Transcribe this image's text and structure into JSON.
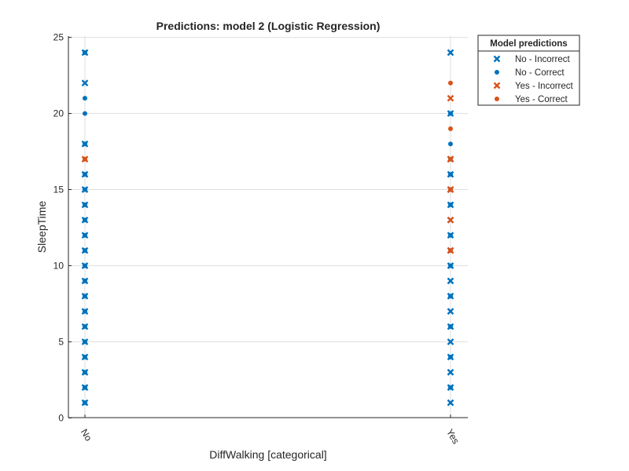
{
  "chart_data": {
    "type": "scatter",
    "title": "Predictions: model 2 (Logistic Regression)",
    "xlabel": "DiffWalking [categorical]",
    "ylabel": "SleepTime",
    "categories": [
      "No",
      "Yes"
    ],
    "ylim": [
      0,
      25
    ],
    "yticks": [
      0,
      5,
      10,
      15,
      20,
      25
    ],
    "grid": true,
    "legend": {
      "title": "Model predictions",
      "placement": "outside-top-right"
    },
    "series": [
      {
        "name": "No - Incorrect",
        "marker": "x",
        "color": "#0072BD",
        "points": [
          {
            "x": "No",
            "y": 1
          },
          {
            "x": "No",
            "y": 2
          },
          {
            "x": "No",
            "y": 3
          },
          {
            "x": "No",
            "y": 4
          },
          {
            "x": "No",
            "y": 5
          },
          {
            "x": "No",
            "y": 6
          },
          {
            "x": "No",
            "y": 7
          },
          {
            "x": "No",
            "y": 8
          },
          {
            "x": "No",
            "y": 9
          },
          {
            "x": "No",
            "y": 10
          },
          {
            "x": "No",
            "y": 11
          },
          {
            "x": "No",
            "y": 12
          },
          {
            "x": "No",
            "y": 13
          },
          {
            "x": "No",
            "y": 14
          },
          {
            "x": "No",
            "y": 15
          },
          {
            "x": "No",
            "y": 16
          },
          {
            "x": "No",
            "y": 18
          },
          {
            "x": "No",
            "y": 22
          },
          {
            "x": "No",
            "y": 24
          },
          {
            "x": "Yes",
            "y": 1
          },
          {
            "x": "Yes",
            "y": 2
          },
          {
            "x": "Yes",
            "y": 3
          },
          {
            "x": "Yes",
            "y": 4
          },
          {
            "x": "Yes",
            "y": 5
          },
          {
            "x": "Yes",
            "y": 6
          },
          {
            "x": "Yes",
            "y": 7
          },
          {
            "x": "Yes",
            "y": 8
          },
          {
            "x": "Yes",
            "y": 9
          },
          {
            "x": "Yes",
            "y": 10
          },
          {
            "x": "Yes",
            "y": 11
          },
          {
            "x": "Yes",
            "y": 12
          },
          {
            "x": "Yes",
            "y": 13
          },
          {
            "x": "Yes",
            "y": 14
          },
          {
            "x": "Yes",
            "y": 15
          },
          {
            "x": "Yes",
            "y": 16
          },
          {
            "x": "Yes",
            "y": 17
          },
          {
            "x": "Yes",
            "y": 20
          },
          {
            "x": "Yes",
            "y": 24
          }
        ]
      },
      {
        "name": "No - Correct",
        "marker": "o",
        "color": "#0072BD",
        "points": [
          {
            "x": "No",
            "y": 1
          },
          {
            "x": "No",
            "y": 2
          },
          {
            "x": "No",
            "y": 3
          },
          {
            "x": "No",
            "y": 4
          },
          {
            "x": "No",
            "y": 5
          },
          {
            "x": "No",
            "y": 6
          },
          {
            "x": "No",
            "y": 7
          },
          {
            "x": "No",
            "y": 8
          },
          {
            "x": "No",
            "y": 9
          },
          {
            "x": "No",
            "y": 10
          },
          {
            "x": "No",
            "y": 11
          },
          {
            "x": "No",
            "y": 12
          },
          {
            "x": "No",
            "y": 13
          },
          {
            "x": "No",
            "y": 14
          },
          {
            "x": "No",
            "y": 15
          },
          {
            "x": "No",
            "y": 16
          },
          {
            "x": "No",
            "y": 18
          },
          {
            "x": "No",
            "y": 20
          },
          {
            "x": "No",
            "y": 21
          },
          {
            "x": "No",
            "y": 24
          },
          {
            "x": "Yes",
            "y": 2
          },
          {
            "x": "Yes",
            "y": 4
          },
          {
            "x": "Yes",
            "y": 6
          },
          {
            "x": "Yes",
            "y": 8
          },
          {
            "x": "Yes",
            "y": 10
          },
          {
            "x": "Yes",
            "y": 12
          },
          {
            "x": "Yes",
            "y": 14
          },
          {
            "x": "Yes",
            "y": 16
          },
          {
            "x": "Yes",
            "y": 18
          },
          {
            "x": "Yes",
            "y": 20
          }
        ]
      },
      {
        "name": "Yes - Incorrect",
        "marker": "x",
        "color": "#D95319",
        "points": [
          {
            "x": "No",
            "y": 17
          },
          {
            "x": "Yes",
            "y": 11
          },
          {
            "x": "Yes",
            "y": 13
          },
          {
            "x": "Yes",
            "y": 15
          },
          {
            "x": "Yes",
            "y": 17
          },
          {
            "x": "Yes",
            "y": 21
          }
        ]
      },
      {
        "name": "Yes - Correct",
        "marker": "o",
        "color": "#D95319",
        "points": [
          {
            "x": "No",
            "y": 17
          },
          {
            "x": "Yes",
            "y": 11
          },
          {
            "x": "Yes",
            "y": 15
          },
          {
            "x": "Yes",
            "y": 17
          },
          {
            "x": "Yes",
            "y": 19
          },
          {
            "x": "Yes",
            "y": 22
          }
        ]
      }
    ]
  }
}
